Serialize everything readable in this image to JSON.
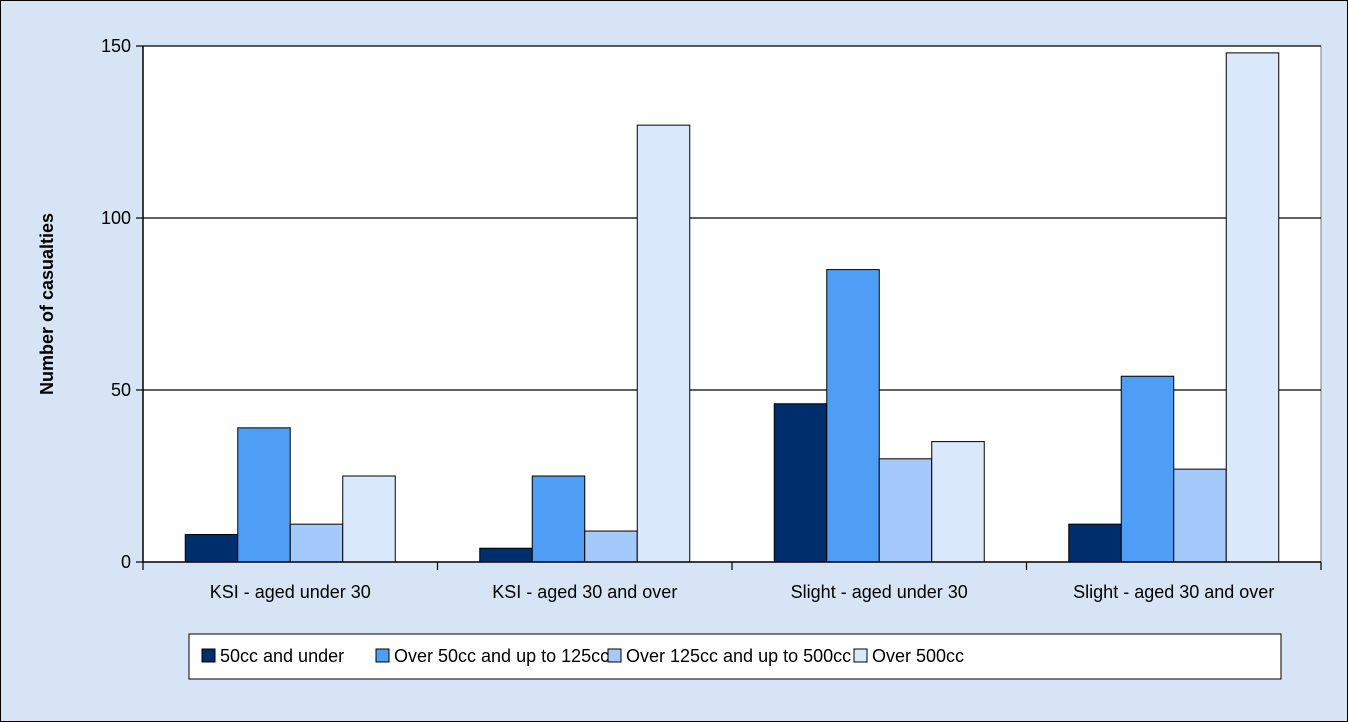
{
  "chart_data": {
    "type": "bar",
    "title": "",
    "xlabel": "",
    "ylabel": "Number of casualties",
    "ylim": [
      0,
      150
    ],
    "yticks": [
      0,
      50,
      100,
      150
    ],
    "grid": true,
    "legend_position": "bottom",
    "categories": [
      "KSI - aged under 30",
      "KSI - aged 30 and over",
      "Slight - aged under 30",
      "Slight - aged 30 and over"
    ],
    "series": [
      {
        "name": "50cc and under",
        "color": "#002d6b",
        "values": [
          8,
          4,
          46,
          11
        ]
      },
      {
        "name": "Over 50cc and up to 125cc",
        "color": "#4f9ef5",
        "values": [
          39,
          25,
          85,
          54
        ]
      },
      {
        "name": "Over 125cc and up to 500cc",
        "color": "#a4c9fa",
        "values": [
          11,
          9,
          30,
          27
        ]
      },
      {
        "name": "Over 500cc",
        "color": "#dae8fb",
        "values": [
          25,
          127,
          35,
          148
        ]
      }
    ]
  }
}
